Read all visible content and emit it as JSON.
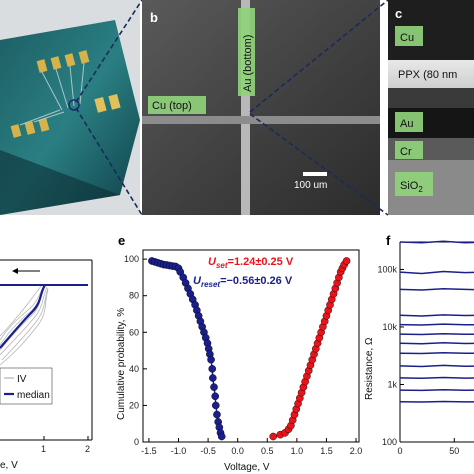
{
  "panels": {
    "b": {
      "letter": "b",
      "labels": {
        "au_bottom": "Au (bottom)",
        "cu_top": "Cu (top)"
      },
      "scalebar": "100 um"
    },
    "c": {
      "letter": "c",
      "layers": {
        "cu": "Cu",
        "ppx": "PPX (80 nm",
        "au": "Au",
        "cr": "Cr",
        "sio2_base": "SiO",
        "sio2_sub": "2"
      }
    },
    "d": {
      "legend": {
        "iv": "IV",
        "median": "median"
      },
      "xlabel_fragment": "e, V",
      "xticks": [
        "1",
        "2"
      ]
    },
    "e": {
      "letter": "e",
      "xlabel": "Voltage, V",
      "ylabel": "Cumulative probability, %",
      "xticks": [
        "-1.5",
        "-1.0",
        "-0.5",
        "0.0",
        "0.5",
        "1.0",
        "1.5",
        "2.0"
      ],
      "yticks": [
        "0",
        "20",
        "40",
        "60",
        "80",
        "100"
      ],
      "uset_base": "U",
      "uset_sub": "set",
      "uset_value": "=1.24±0.25 V",
      "ureset_base": "U",
      "ureset_sub": "reset",
      "ureset_value": "=−0.56±0.26 V"
    },
    "f": {
      "letter": "f",
      "ylabel": "Resistance, Ω",
      "yticks": [
        "100k",
        "10k",
        "1k",
        "100"
      ],
      "xticks": [
        "0",
        "50",
        "100"
      ]
    }
  },
  "colors": {
    "set": "#e8131b",
    "reset": "#1a1f8c",
    "median": "#1a1f8c",
    "label_box": "#8fd17a"
  },
  "chart_data": [
    {
      "type": "scatter",
      "panel": "e",
      "xlabel": "Voltage, V",
      "ylabel": "Cumulative probability, %",
      "xlim": [
        -1.6,
        2.05
      ],
      "ylim": [
        0,
        105
      ],
      "series": [
        {
          "name": "U_reset",
          "color": "#1a1f8c",
          "x": [
            -1.45,
            -1.4,
            -1.35,
            -1.3,
            -1.25,
            -1.2,
            -1.15,
            -1.1,
            -1.05,
            -1.0,
            -0.97,
            -0.92,
            -0.88,
            -0.84,
            -0.8,
            -0.76,
            -0.72,
            -0.69,
            -0.66,
            -0.63,
            -0.6,
            -0.57,
            -0.54,
            -0.51,
            -0.49,
            -0.47,
            -0.45,
            -0.43,
            -0.42,
            -0.4,
            -0.38,
            -0.37,
            -0.35,
            -0.33,
            -0.31,
            -0.29,
            -0.27
          ],
          "y": [
            99,
            98.5,
            98,
            97.5,
            97,
            96.8,
            96.5,
            96.2,
            96,
            95,
            93,
            90,
            87,
            84,
            81,
            78,
            75,
            72,
            69,
            66,
            63,
            60,
            57,
            54,
            51,
            48,
            45,
            40,
            35,
            30,
            25,
            20,
            15,
            11,
            8,
            5,
            3
          ]
        },
        {
          "name": "U_set",
          "color": "#e8131b",
          "x": [
            0.6,
            0.72,
            0.8,
            0.86,
            0.9,
            0.93,
            0.96,
            0.99,
            1.02,
            1.05,
            1.08,
            1.11,
            1.14,
            1.17,
            1.2,
            1.23,
            1.26,
            1.29,
            1.32,
            1.35,
            1.38,
            1.41,
            1.44,
            1.47,
            1.5,
            1.53,
            1.56,
            1.59,
            1.62,
            1.65,
            1.68,
            1.71,
            1.74,
            1.77,
            1.8,
            1.84
          ],
          "y": [
            3,
            4,
            5,
            7,
            9,
            12,
            15,
            18,
            21,
            24,
            27,
            30,
            33,
            36,
            39,
            42,
            45,
            48,
            51,
            54,
            57,
            60,
            63,
            66,
            69,
            72,
            75,
            78,
            81,
            84,
            87,
            90,
            93,
            95,
            97,
            99
          ]
        }
      ]
    },
    {
      "type": "line",
      "panel": "f",
      "ylabel": "Resistance, Ω",
      "yscale": "log",
      "ylim": [
        100,
        300000
      ],
      "xlim": [
        0,
        150
      ],
      "series": [
        {
          "x": [
            0,
            20,
            40,
            60,
            80,
            100,
            120,
            150
          ],
          "values": [
            300000,
            290000,
            310000,
            290000,
            300000,
            305000,
            295000,
            300000
          ]
        },
        {
          "x": [
            0,
            20,
            40,
            60,
            80,
            100,
            120,
            150
          ],
          "values": [
            90000,
            85000,
            92000,
            88000,
            90000,
            87000,
            91000,
            89000
          ]
        },
        {
          "x": [
            0,
            20,
            40,
            60,
            80,
            100,
            120,
            150
          ],
          "values": [
            45000,
            44000,
            46000,
            45000,
            44000,
            45500,
            44500,
            45000
          ]
        },
        {
          "x": [
            0,
            20,
            40,
            60,
            80,
            100,
            120,
            150
          ],
          "values": [
            16000,
            15500,
            16200,
            15800,
            16000,
            15700,
            16100,
            15900
          ]
        },
        {
          "x": [
            0,
            20,
            40,
            60,
            80,
            100,
            120,
            150
          ],
          "values": [
            11000,
            10800,
            11200,
            10900,
            11000,
            10950,
            11100,
            10900
          ]
        },
        {
          "x": [
            0,
            20,
            40,
            60,
            80,
            100,
            120,
            150
          ],
          "values": [
            7500,
            7400,
            7600,
            7450,
            7500,
            7550,
            7480,
            7520
          ]
        },
        {
          "x": [
            0,
            20,
            40,
            60,
            80,
            100,
            120,
            150
          ],
          "values": [
            5200,
            5100,
            5300,
            5150,
            5200,
            5250,
            5180,
            5220
          ]
        },
        {
          "x": [
            0,
            20,
            40,
            60,
            80,
            100,
            120,
            150
          ],
          "values": [
            3500,
            3450,
            3550,
            3480,
            3500,
            3520,
            3490,
            3510
          ]
        },
        {
          "x": [
            0,
            20,
            40,
            60,
            80,
            100,
            120,
            150
          ],
          "values": [
            2100,
            2050,
            2150,
            2080,
            2100,
            2120,
            2090,
            2110
          ]
        },
        {
          "x": [
            0,
            20,
            40,
            60,
            80,
            100,
            120,
            150
          ],
          "values": [
            1300,
            1280,
            1320,
            1290,
            1300,
            1310,
            1295,
            1305
          ]
        },
        {
          "x": [
            0,
            20,
            40,
            60,
            80,
            100,
            120,
            150
          ],
          "values": [
            800,
            790,
            810,
            795,
            800,
            805,
            798,
            802
          ]
        },
        {
          "x": [
            0,
            20,
            40,
            60,
            80,
            100,
            120,
            150
          ],
          "values": [
            500,
            495,
            505,
            498,
            500,
            502,
            499,
            501
          ]
        }
      ]
    }
  ]
}
